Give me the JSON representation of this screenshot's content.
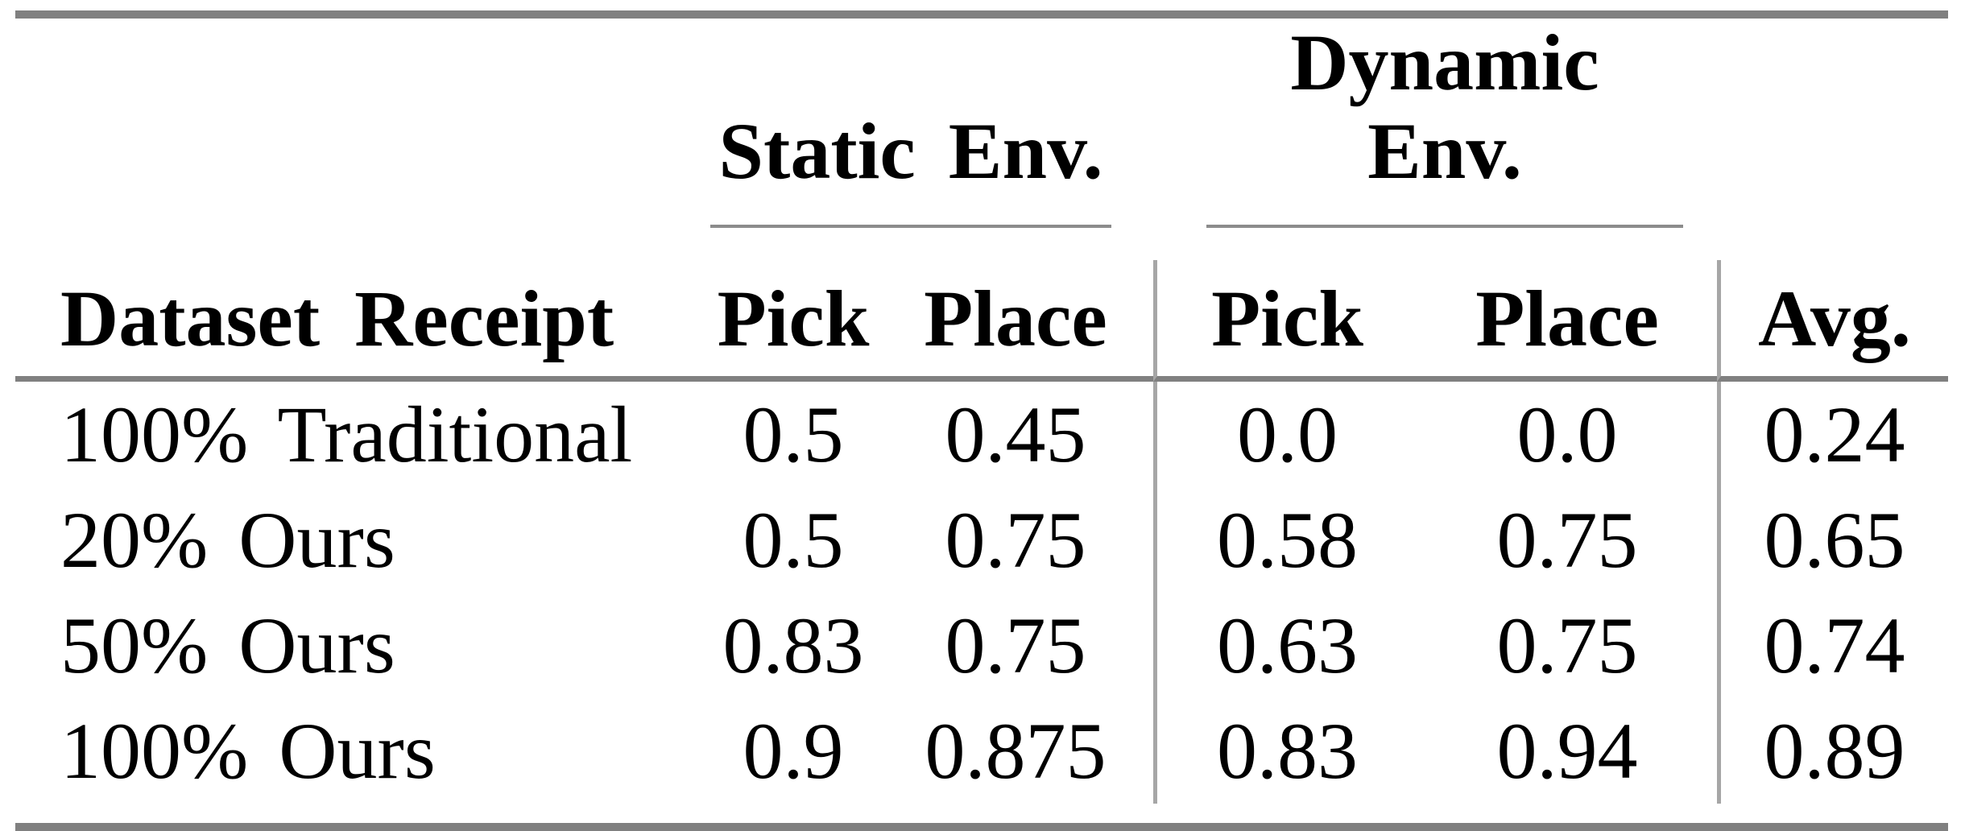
{
  "table": {
    "groups": {
      "static": "Static Env.",
      "dynamic": "Dynamic Env."
    },
    "columns": {
      "receipt": "Dataset Receipt",
      "static_pick": "Pick",
      "static_place": "Place",
      "dynamic_pick": "Pick",
      "dynamic_place": "Place",
      "avg": "Avg."
    },
    "rows": [
      {
        "label": "100% Traditional",
        "static_pick": "0.5",
        "static_place": "0.45",
        "dynamic_pick": "0.0",
        "dynamic_place": "0.0",
        "avg": "0.24"
      },
      {
        "label": "20% Ours",
        "static_pick": "0.5",
        "static_place": "0.75",
        "dynamic_pick": "0.58",
        "dynamic_place": "0.75",
        "avg": "0.65"
      },
      {
        "label": "50% Ours",
        "static_pick": "0.83",
        "static_place": "0.75",
        "dynamic_pick": "0.63",
        "dynamic_place": "0.75",
        "avg": "0.74"
      },
      {
        "label": "100% Ours",
        "static_pick": "0.9",
        "static_place": "0.875",
        "dynamic_pick": "0.83",
        "dynamic_place": "0.94",
        "avg": "0.89"
      }
    ],
    "colors": {
      "rule_heavy": "#808080",
      "rule_mid": "#8c8c8c",
      "separator": "#a6a6a6",
      "text": "#000000",
      "background": "#ffffff"
    }
  }
}
